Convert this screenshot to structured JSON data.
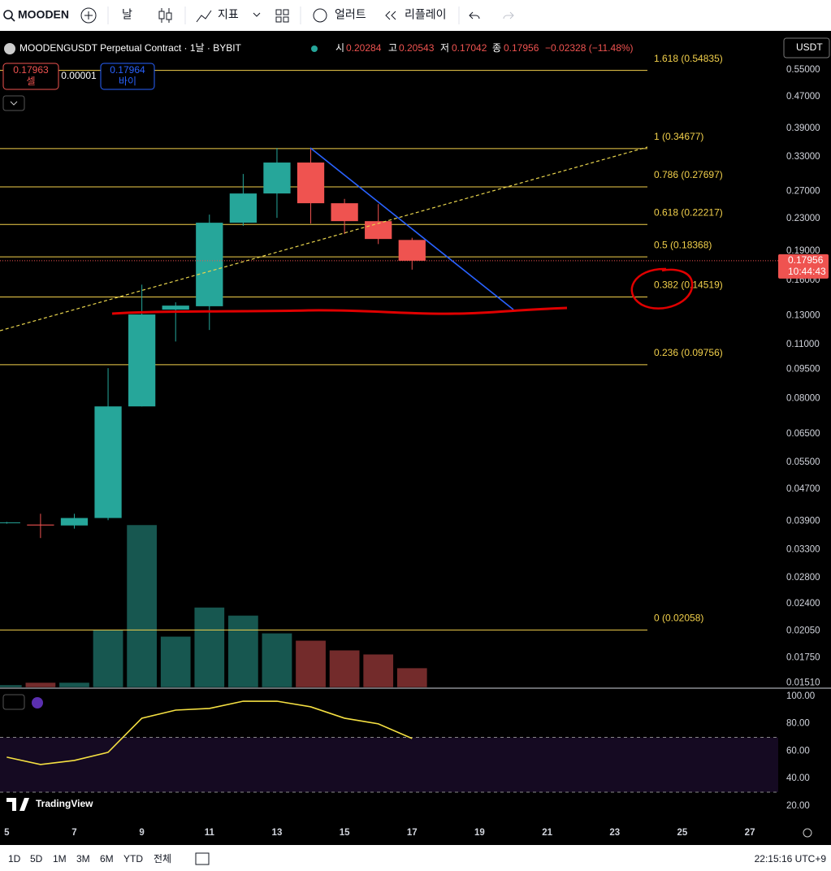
{
  "toolbar": {
    "symbol": "MOODEN",
    "interval": "날",
    "indicators": "지표",
    "alert": "얼러트",
    "replay": "리플레이"
  },
  "header": {
    "title": "MOODENGUSDT Perpetual Contract · 1날 · BYBIT",
    "o": "시",
    "h": "고",
    "l": "저",
    "c": "종",
    "change": "−0.02328 (−11.48%)"
  },
  "trade": {
    "sell_price": "0.17963",
    "sell": "셀",
    "spread": "0.00001",
    "buy_price": "0.17964",
    "buy": "바이"
  },
  "currency": "USDT",
  "countdown": "10:44:43",
  "logo": "TradingView",
  "ranges": [
    "1D",
    "5D",
    "1M",
    "3M",
    "6M",
    "YTD",
    "전체"
  ],
  "clock": "22:15:16 UTC+9",
  "chart_data": [
    {
      "type": "candlestick",
      "log_scale": true,
      "x": [
        5,
        6,
        7,
        8,
        9,
        10,
        11,
        12,
        13,
        14,
        15,
        16,
        17
      ],
      "open": [
        0.0386,
        0.0382,
        0.038,
        0.0397,
        0.0764,
        0.1348,
        0.1375,
        0.2244,
        0.2664,
        0.3194,
        0.2516,
        0.2265,
        0.20284
      ],
      "high": [
        0.0388,
        0.0407,
        0.0407,
        0.0956,
        0.156,
        0.1407,
        0.2353,
        0.2987,
        0.3479,
        0.3479,
        0.2581,
        0.2503,
        0.20543
      ],
      "low": [
        0.0384,
        0.0353,
        0.0373,
        0.0392,
        0.0764,
        0.1118,
        0.1196,
        0.2203,
        0.2309,
        0.2233,
        0.21,
        0.198,
        0.17042
      ],
      "close": [
        0.0387,
        0.038,
        0.0397,
        0.0764,
        0.131,
        0.138,
        0.2244,
        0.2664,
        0.3194,
        0.2516,
        0.2265,
        0.204,
        0.17956
      ],
      "volume": [
        3,
        6,
        6,
        71,
        201,
        63,
        99,
        89,
        67,
        58,
        46,
        41,
        24
      ],
      "up_color": "#26a69a",
      "down_color": "#ef5350",
      "volume_up_color": "#175750",
      "volume_down_color": "#732b2b",
      "xlim": [
        4.8,
        27.84
      ],
      "xticks": [
        5,
        7,
        9,
        11,
        13,
        15,
        17,
        19,
        21,
        23,
        25,
        27
      ],
      "ylim": [
        0.0147,
        0.672
      ],
      "yticks": [
        {
          "value": 0.55,
          "label": "0.55000"
        },
        {
          "value": 0.47,
          "label": "0.47000"
        },
        {
          "value": 0.39,
          "label": "0.39000"
        },
        {
          "value": 0.33,
          "label": "0.33000"
        },
        {
          "value": 0.27,
          "label": "0.27000"
        },
        {
          "value": 0.23,
          "label": "0.23000"
        },
        {
          "value": 0.19,
          "label": "0.19000"
        },
        {
          "value": 0.16,
          "label": "0.16000"
        },
        {
          "value": 0.13,
          "label": "0.13000"
        },
        {
          "value": 0.11,
          "label": "0.11000"
        },
        {
          "value": 0.095,
          "label": "0.09500"
        },
        {
          "value": 0.08,
          "label": "0.08000"
        },
        {
          "value": 0.065,
          "label": "0.06500"
        },
        {
          "value": 0.055,
          "label": "0.05500"
        },
        {
          "value": 0.047,
          "label": "0.04700"
        },
        {
          "value": 0.039,
          "label": "0.03900"
        },
        {
          "value": 0.033,
          "label": "0.03300"
        },
        {
          "value": 0.028,
          "label": "0.02800"
        },
        {
          "value": 0.024,
          "label": "0.02400"
        },
        {
          "value": 0.0205,
          "label": "0.02050"
        },
        {
          "value": 0.0175,
          "label": "0.01750"
        },
        {
          "value": 0.0151,
          "label": "0.01510"
        }
      ],
      "fib_color": "#f2d04b",
      "fib_levels": [
        {
          "value": 0.54835,
          "label": "1.618 (0.54835)"
        },
        {
          "value": 0.34677,
          "label": "1 (0.34677)"
        },
        {
          "value": 0.27697,
          "label": "0.786 (0.27697)"
        },
        {
          "value": 0.22217,
          "label": "0.618 (0.22217)"
        },
        {
          "value": 0.18368,
          "label": "0.5 (0.18368)"
        },
        {
          "value": 0.14519,
          "label": "0.382 (0.14519)"
        },
        {
          "value": 0.09756,
          "label": "0.236 (0.09756)"
        },
        {
          "value": 0.02058,
          "label": "0 (0.02058)"
        }
      ]
    },
    {
      "type": "line",
      "color": "#f5e042",
      "x": [
        5,
        6,
        7,
        8,
        9,
        10,
        11,
        12,
        13,
        14,
        15,
        16,
        17
      ],
      "values": [
        55.6,
        50.2,
        53.2,
        59.1,
        84,
        89.9,
        91.1,
        96.4,
        96.4,
        92.3,
        84,
        79.9,
        69.2
      ],
      "bands": [
        30,
        70
      ],
      "xlim": [
        4.8,
        27.84
      ],
      "ylim": [
        8.1,
        105.3
      ],
      "yticks": [
        {
          "value": 100,
          "label": "100.00"
        },
        {
          "value": 80,
          "label": "80.00"
        },
        {
          "value": 60,
          "label": "60.00"
        },
        {
          "value": 40,
          "label": "40.00"
        },
        {
          "value": 20,
          "label": "20.00"
        }
      ]
    }
  ]
}
